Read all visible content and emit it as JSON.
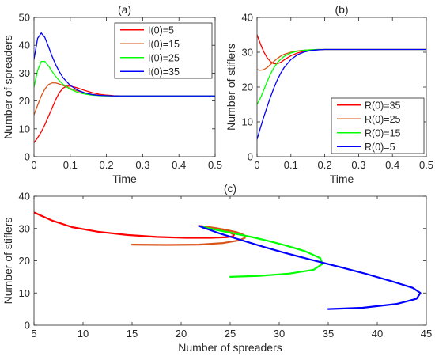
{
  "chart_data": [
    {
      "id": "a",
      "type": "line",
      "title": "(a)",
      "xlabel": "Time",
      "ylabel": "Number of spreaders",
      "xlim": [
        0,
        0.5
      ],
      "ylim": [
        0,
        50
      ],
      "xticks": [
        0,
        0.1,
        0.2,
        0.3,
        0.4,
        0.5
      ],
      "xtick_labels": [
        "0",
        "0.1",
        "0.2",
        "0.3",
        "0.4",
        "0.5"
      ],
      "yticks": [
        0,
        10,
        20,
        30,
        40,
        50
      ],
      "ytick_labels": [
        "0",
        "10",
        "20",
        "30",
        "40",
        "50"
      ],
      "legend_position": "top-right",
      "series": [
        {
          "name": "I(0)=5",
          "color": "#ff0000",
          "x": [
            0,
            0.01,
            0.02,
            0.03,
            0.04,
            0.05,
            0.06,
            0.07,
            0.08,
            0.09,
            0.1,
            0.12,
            0.14,
            0.16,
            0.18,
            0.2,
            0.22,
            0.25,
            0.3,
            0.4,
            0.5
          ],
          "y": [
            5,
            6.8,
            8.9,
            11.5,
            14.5,
            17.5,
            20.5,
            23,
            24.6,
            25.3,
            25.4,
            24.7,
            23.8,
            23,
            22.4,
            22.1,
            21.9,
            21.8,
            21.8,
            21.8,
            21.8
          ]
        },
        {
          "name": "I(0)=15",
          "color": "#d95319",
          "x": [
            0,
            0.01,
            0.02,
            0.03,
            0.04,
            0.05,
            0.06,
            0.07,
            0.08,
            0.1,
            0.12,
            0.14,
            0.16,
            0.18,
            0.2,
            0.22,
            0.25,
            0.3,
            0.4,
            0.5
          ],
          "y": [
            15,
            18.5,
            21.8,
            24.3,
            25.9,
            26.5,
            26.5,
            26.1,
            25.6,
            24.5,
            23.6,
            22.9,
            22.4,
            22.1,
            21.9,
            21.8,
            21.8,
            21.8,
            21.8,
            21.8
          ]
        },
        {
          "name": "I(0)=25",
          "color": "#00ff00",
          "x": [
            0,
            0.01,
            0.02,
            0.03,
            0.04,
            0.05,
            0.06,
            0.07,
            0.08,
            0.1,
            0.12,
            0.14,
            0.16,
            0.18,
            0.2,
            0.22,
            0.25,
            0.3,
            0.4,
            0.5
          ],
          "y": [
            25,
            31,
            34.2,
            34.2,
            32.6,
            30.6,
            28.8,
            27.3,
            26,
            24.2,
            23.1,
            22.5,
            22.1,
            21.9,
            21.8,
            21.8,
            21.8,
            21.8,
            21.8,
            21.8
          ]
        },
        {
          "name": "I(0)=35",
          "color": "#0000ff",
          "x": [
            0,
            0.01,
            0.02,
            0.03,
            0.04,
            0.05,
            0.06,
            0.07,
            0.08,
            0.1,
            0.12,
            0.14,
            0.16,
            0.18,
            0.2,
            0.22,
            0.25,
            0.3,
            0.4,
            0.5
          ],
          "y": [
            35,
            42.5,
            44.4,
            42.8,
            39.5,
            36,
            33,
            30.5,
            28.4,
            25.6,
            23.9,
            22.9,
            22.3,
            22,
            21.9,
            21.8,
            21.8,
            21.8,
            21.8,
            21.8
          ]
        }
      ]
    },
    {
      "id": "b",
      "type": "line",
      "title": "(b)",
      "xlabel": "Time",
      "ylabel": "Number of stiflers",
      "xlim": [
        0,
        0.5
      ],
      "ylim": [
        0,
        40
      ],
      "xticks": [
        0,
        0.1,
        0.2,
        0.3,
        0.4,
        0.5
      ],
      "xtick_labels": [
        "0",
        "0.1",
        "0.2",
        "0.3",
        "0.4",
        "0.5"
      ],
      "yticks": [
        0,
        10,
        20,
        30,
        40
      ],
      "ytick_labels": [
        "0",
        "10",
        "20",
        "30",
        "40"
      ],
      "legend_position": "bottom-right",
      "series": [
        {
          "name": "R(0)=35",
          "color": "#ff0000",
          "x": [
            0,
            0.01,
            0.02,
            0.03,
            0.04,
            0.05,
            0.06,
            0.07,
            0.08,
            0.1,
            0.12,
            0.14,
            0.16,
            0.18,
            0.2,
            0.22,
            0.25,
            0.3,
            0.4,
            0.5
          ],
          "y": [
            35,
            32.4,
            30.1,
            28.4,
            27.3,
            26.7,
            26.7,
            27.1,
            27.8,
            29,
            29.8,
            30.3,
            30.6,
            30.7,
            30.8,
            30.8,
            30.8,
            30.8,
            30.8,
            30.8
          ]
        },
        {
          "name": "R(0)=25",
          "color": "#d95319",
          "x": [
            0,
            0.01,
            0.02,
            0.03,
            0.04,
            0.05,
            0.06,
            0.07,
            0.08,
            0.1,
            0.12,
            0.14,
            0.16,
            0.18,
            0.2,
            0.22,
            0.25,
            0.3,
            0.4,
            0.5
          ],
          "y": [
            25,
            24.8,
            25,
            25.6,
            26.5,
            27.4,
            28.2,
            28.9,
            29.4,
            30,
            30.4,
            30.6,
            30.7,
            30.8,
            30.8,
            30.8,
            30.8,
            30.8,
            30.8,
            30.8
          ]
        },
        {
          "name": "R(0)=15",
          "color": "#00ff00",
          "x": [
            0,
            0.01,
            0.02,
            0.03,
            0.04,
            0.05,
            0.06,
            0.07,
            0.08,
            0.1,
            0.12,
            0.14,
            0.16,
            0.18,
            0.2,
            0.22,
            0.25,
            0.3,
            0.4,
            0.5
          ],
          "y": [
            15,
            16.8,
            19.2,
            21.6,
            23.8,
            25.6,
            27,
            28,
            28.8,
            29.8,
            30.3,
            30.6,
            30.7,
            30.8,
            30.8,
            30.8,
            30.8,
            30.8,
            30.8,
            30.8
          ]
        },
        {
          "name": "R(0)=5",
          "color": "#0000ff",
          "x": [
            0,
            0.01,
            0.02,
            0.03,
            0.04,
            0.05,
            0.06,
            0.07,
            0.08,
            0.1,
            0.12,
            0.14,
            0.16,
            0.18,
            0.2,
            0.22,
            0.25,
            0.3,
            0.4,
            0.5
          ],
          "y": [
            5,
            8.3,
            11.4,
            14.4,
            17.2,
            19.8,
            22.1,
            24,
            25.6,
            27.9,
            29.3,
            30.1,
            30.5,
            30.7,
            30.8,
            30.8,
            30.8,
            30.8,
            30.8,
            30.8
          ]
        }
      ]
    },
    {
      "id": "c",
      "type": "line",
      "title": "(c)",
      "xlabel": "Number of spreaders",
      "ylabel": "Number of stiflers",
      "xlim": [
        5,
        45
      ],
      "ylim": [
        0,
        40
      ],
      "xticks": [
        5,
        10,
        15,
        20,
        25,
        30,
        35,
        40,
        45
      ],
      "xtick_labels": [
        "5",
        "10",
        "15",
        "20",
        "25",
        "30",
        "35",
        "40",
        "45"
      ],
      "yticks": [
        0,
        10,
        20,
        30,
        40
      ],
      "ytick_labels": [
        "0",
        "10",
        "20",
        "30",
        "40"
      ],
      "series": [
        {
          "color": "#ff0000",
          "x": [
            5,
            6.8,
            8.9,
            11.5,
            14.5,
            17.5,
            20.5,
            23,
            24.6,
            25.3,
            25.4,
            24.7,
            23.8,
            23,
            22.4,
            22.1,
            21.9,
            21.8
          ],
          "y": [
            35,
            32.5,
            30.4,
            29,
            28,
            27.4,
            27.1,
            27.1,
            27.3,
            27.6,
            28.1,
            29.2,
            29.9,
            30.3,
            30.6,
            30.7,
            30.8,
            30.8
          ]
        },
        {
          "color": "#d95319",
          "x": [
            15,
            18.5,
            21.8,
            24.3,
            25.9,
            26.5,
            26.5,
            26.1,
            25.6,
            24.5,
            23.6,
            22.9,
            22.4,
            22.1,
            21.9,
            21.8
          ],
          "y": [
            25,
            24.9,
            25,
            25.5,
            26.3,
            27.1,
            27.8,
            28.4,
            28.9,
            29.6,
            30.1,
            30.4,
            30.6,
            30.7,
            30.8,
            30.8
          ]
        },
        {
          "color": "#00ff00",
          "x": [
            25,
            28,
            31,
            33.5,
            34.4,
            34.2,
            32.6,
            30.6,
            28.8,
            27.3,
            26,
            24.2,
            23.1,
            22.5,
            22.1,
            21.9,
            21.8
          ],
          "y": [
            15,
            15.3,
            16,
            17.2,
            19,
            20.8,
            23,
            24.8,
            26.2,
            27.3,
            28.1,
            29.2,
            29.9,
            30.3,
            30.6,
            30.7,
            30.8
          ]
        },
        {
          "color": "#0000ff",
          "x": [
            35,
            38.5,
            42,
            44,
            44.4,
            43.6,
            41.5,
            39,
            36,
            33,
            30.5,
            28.4,
            25.6,
            23.9,
            22.9,
            22.3,
            22,
            21.8
          ],
          "y": [
            5,
            5.4,
            6.6,
            8.2,
            10,
            11.6,
            13.6,
            15.8,
            18.2,
            20.5,
            22.5,
            24.3,
            26.9,
            28.5,
            29.6,
            30.2,
            30.6,
            30.8
          ]
        }
      ]
    }
  ]
}
